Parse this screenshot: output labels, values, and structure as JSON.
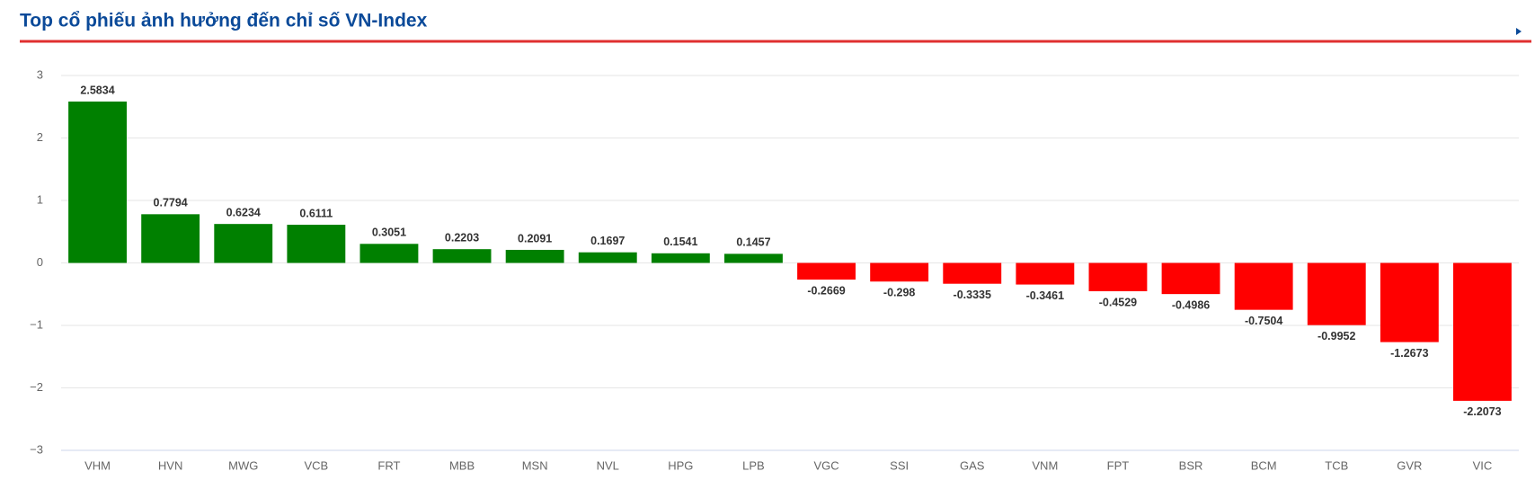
{
  "chart_data": {
    "type": "bar",
    "title": "Top cổ phiếu ảnh hưởng đến chỉ số VN-Index",
    "categories": [
      "VHM",
      "HVN",
      "MWG",
      "VCB",
      "FRT",
      "MBB",
      "MSN",
      "NVL",
      "HPG",
      "LPB",
      "VGC",
      "SSI",
      "GAS",
      "VNM",
      "FPT",
      "BSR",
      "BCM",
      "TCB",
      "GVR",
      "VIC"
    ],
    "values": [
      2.5834,
      0.7794,
      0.6234,
      0.6111,
      0.3051,
      0.2203,
      0.2091,
      0.1697,
      0.1541,
      0.1457,
      -0.2669,
      -0.298,
      -0.3335,
      -0.3461,
      -0.4529,
      -0.4986,
      -0.7504,
      -0.9952,
      -1.2673,
      -2.2073
    ],
    "positive_color": "#008000",
    "negative_color": "#ff0000",
    "ylim": [
      -3,
      3
    ],
    "yticks": [
      {
        "value": -3,
        "label": "−3"
      },
      {
        "value": -2,
        "label": "−2"
      },
      {
        "value": -1,
        "label": "−1"
      },
      0,
      1,
      2,
      3
    ],
    "grid": true
  }
}
